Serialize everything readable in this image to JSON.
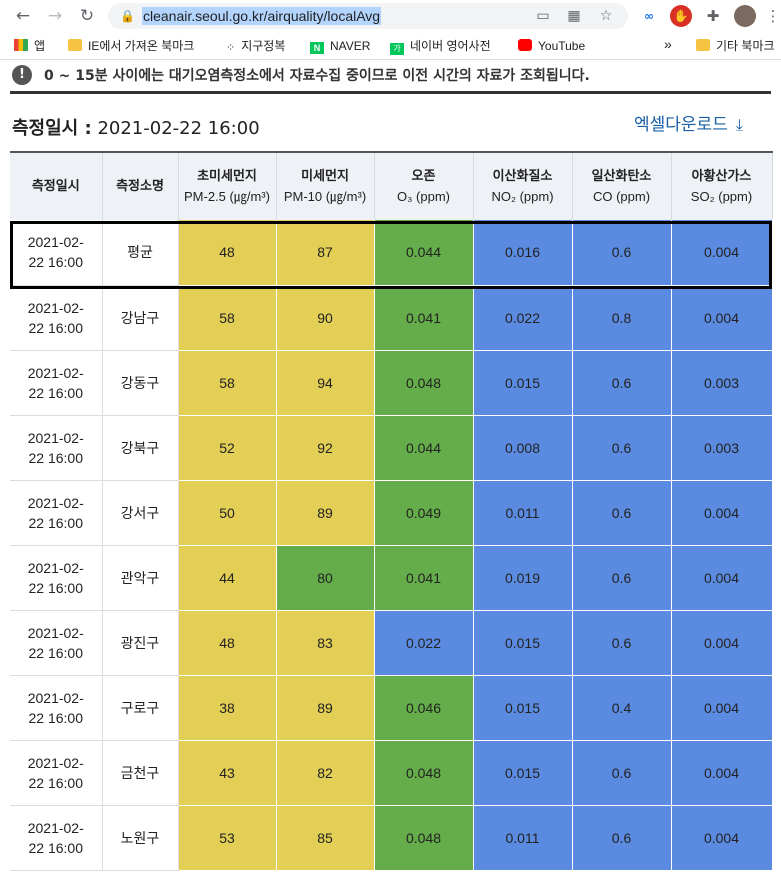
{
  "browser": {
    "url": "cleanair.seoul.go.kr/airquality/localAvg",
    "bookmarks": [
      "앱",
      "IE에서 가져온 북마크",
      "지구정복",
      "NAVER",
      "네이버 영어사전",
      "YouTube",
      "기타 북마크"
    ],
    "more": "»"
  },
  "notice": "0 ~ 15분 사이에는 대기오염측정소에서 자료수집 중이므로 이전 시간의 자료가 조회됩니다.",
  "measure": {
    "label": "측정일시 :",
    "value": "2021-02-22 16:00"
  },
  "excel_label": "엑셀다운로드",
  "headers": [
    {
      "title": "측정일시",
      "sub": ""
    },
    {
      "title": "측정소명",
      "sub": ""
    },
    {
      "title": "초미세먼지",
      "sub": "PM-2.5 (㎍/m³)"
    },
    {
      "title": "미세먼지",
      "sub": "PM-10 (㎍/m³)"
    },
    {
      "title": "오존",
      "sub": "O₃ (ppm)"
    },
    {
      "title": "이산화질소",
      "sub": "NO₂ (ppm)"
    },
    {
      "title": "일산화탄소",
      "sub": "CO (ppm)"
    },
    {
      "title": "아황산가스",
      "sub": "SO₂ (ppm)"
    }
  ],
  "rows": [
    {
      "date1": "2021-02-",
      "date2": "22 16:00",
      "station": "평균",
      "pm25": "48",
      "pm10": "87",
      "o3": "0.044",
      "no2": "0.016",
      "co": "0.6",
      "so2": "0.004"
    },
    {
      "date1": "2021-02-",
      "date2": "22 16:00",
      "station": "강남구",
      "pm25": "58",
      "pm10": "90",
      "o3": "0.041",
      "no2": "0.022",
      "co": "0.8",
      "so2": "0.004"
    },
    {
      "date1": "2021-02-",
      "date2": "22 16:00",
      "station": "강동구",
      "pm25": "58",
      "pm10": "94",
      "o3": "0.048",
      "no2": "0.015",
      "co": "0.6",
      "so2": "0.003"
    },
    {
      "date1": "2021-02-",
      "date2": "22 16:00",
      "station": "강북구",
      "pm25": "52",
      "pm10": "92",
      "o3": "0.044",
      "no2": "0.008",
      "co": "0.6",
      "so2": "0.003"
    },
    {
      "date1": "2021-02-",
      "date2": "22 16:00",
      "station": "강서구",
      "pm25": "50",
      "pm10": "89",
      "o3": "0.049",
      "no2": "0.011",
      "co": "0.6",
      "so2": "0.004"
    },
    {
      "date1": "2021-02-",
      "date2": "22 16:00",
      "station": "관악구",
      "pm25": "44",
      "pm10": "80",
      "o3": "0.041",
      "no2": "0.019",
      "co": "0.6",
      "so2": "0.004"
    },
    {
      "date1": "2021-02-",
      "date2": "22 16:00",
      "station": "광진구",
      "pm25": "48",
      "pm10": "83",
      "o3": "0.022",
      "no2": "0.015",
      "co": "0.6",
      "so2": "0.004"
    },
    {
      "date1": "2021-02-",
      "date2": "22 16:00",
      "station": "구로구",
      "pm25": "38",
      "pm10": "89",
      "o3": "0.046",
      "no2": "0.015",
      "co": "0.4",
      "so2": "0.004"
    },
    {
      "date1": "2021-02-",
      "date2": "22 16:00",
      "station": "금천구",
      "pm25": "43",
      "pm10": "82",
      "o3": "0.048",
      "no2": "0.015",
      "co": "0.6",
      "so2": "0.004"
    },
    {
      "date1": "2021-02-",
      "date2": "22 16:00",
      "station": "노원구",
      "pm25": "53",
      "pm10": "85",
      "o3": "0.048",
      "no2": "0.011",
      "co": "0.6",
      "so2": "0.004"
    }
  ],
  "colors": {
    "good_yellow": "#e3cf55",
    "good_green": "#65ad4a",
    "good_blue": "#5b8be0"
  }
}
